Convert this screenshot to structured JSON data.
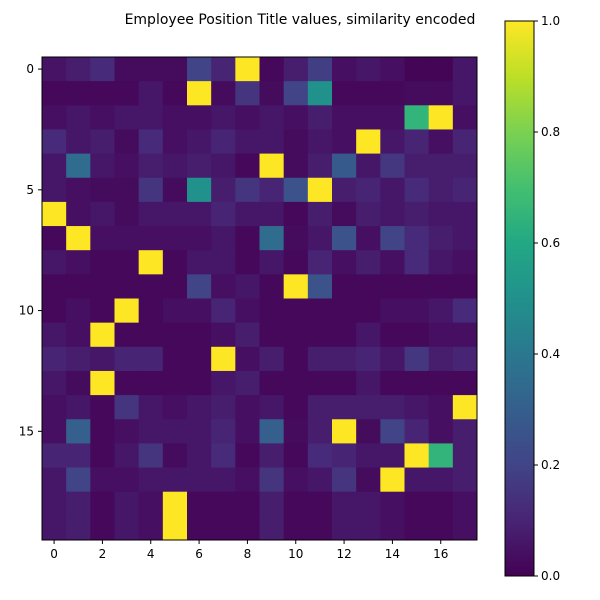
{
  "chart_data": {
    "type": "heatmap",
    "title": "Employee Position Title values, similarity encoded",
    "xlabel": "",
    "ylabel": "",
    "n_rows": 20,
    "n_cols": 18,
    "x_ticks": [
      0,
      2,
      4,
      6,
      8,
      10,
      12,
      14,
      16
    ],
    "y_ticks": [
      0,
      5,
      10,
      15
    ],
    "colorbar": {
      "min": 0.0,
      "max": 1.0,
      "ticks": [
        0.0,
        0.2,
        0.4,
        0.6,
        0.8,
        1.0
      ],
      "tick_labels": [
        "0.0",
        "0.2",
        "0.4",
        "0.6",
        "0.8",
        "1.0"
      ],
      "colormap": "viridis"
    },
    "values": [
      [
        0.05,
        0.08,
        0.12,
        0.03,
        0.03,
        0.03,
        0.2,
        0.1,
        1.0,
        0.02,
        0.08,
        0.18,
        0.04,
        0.06,
        0.04,
        0.01,
        0.01,
        0.06
      ],
      [
        0.02,
        0.02,
        0.02,
        0.02,
        0.06,
        0.02,
        1.0,
        0.03,
        0.15,
        0.03,
        0.2,
        0.5,
        0.02,
        0.02,
        0.02,
        0.03,
        0.03,
        0.06
      ],
      [
        0.04,
        0.06,
        0.04,
        0.06,
        0.06,
        0.04,
        0.04,
        0.06,
        0.04,
        0.06,
        0.04,
        0.08,
        0.04,
        0.04,
        0.04,
        0.65,
        1.0,
        0.04
      ],
      [
        0.12,
        0.06,
        0.08,
        0.03,
        0.12,
        0.04,
        0.06,
        0.1,
        0.06,
        0.06,
        0.03,
        0.06,
        0.04,
        1.0,
        0.06,
        0.1,
        0.04,
        0.1
      ],
      [
        0.06,
        0.35,
        0.06,
        0.04,
        0.08,
        0.06,
        0.08,
        0.06,
        0.02,
        1.0,
        0.03,
        0.08,
        0.28,
        0.06,
        0.16,
        0.08,
        0.08,
        0.08
      ],
      [
        0.06,
        0.04,
        0.03,
        0.03,
        0.15,
        0.03,
        0.5,
        0.08,
        0.15,
        0.1,
        0.25,
        1.0,
        0.08,
        0.1,
        0.06,
        0.12,
        0.08,
        0.1
      ],
      [
        1.0,
        0.04,
        0.06,
        0.03,
        0.06,
        0.06,
        0.06,
        0.1,
        0.06,
        0.06,
        0.02,
        0.08,
        0.03,
        0.08,
        0.06,
        0.08,
        0.06,
        0.06
      ],
      [
        0.02,
        1.0,
        0.04,
        0.04,
        0.04,
        0.04,
        0.04,
        0.06,
        0.02,
        0.35,
        0.03,
        0.06,
        0.25,
        0.04,
        0.2,
        0.12,
        0.08,
        0.06
      ],
      [
        0.06,
        0.04,
        0.02,
        0.02,
        1.0,
        0.02,
        0.06,
        0.06,
        0.02,
        0.06,
        0.02,
        0.1,
        0.04,
        0.08,
        0.04,
        0.12,
        0.06,
        0.04
      ],
      [
        0.02,
        0.02,
        0.02,
        0.02,
        0.02,
        0.02,
        0.2,
        0.04,
        0.06,
        0.02,
        1.0,
        0.25,
        0.02,
        0.02,
        0.02,
        0.02,
        0.02,
        0.02
      ],
      [
        0.02,
        0.04,
        0.02,
        1.0,
        0.02,
        0.04,
        0.04,
        0.1,
        0.04,
        0.02,
        0.02,
        0.02,
        0.02,
        0.02,
        0.04,
        0.04,
        0.06,
        0.12
      ],
      [
        0.06,
        0.04,
        1.0,
        0.02,
        0.02,
        0.02,
        0.02,
        0.04,
        0.08,
        0.02,
        0.02,
        0.02,
        0.02,
        0.06,
        0.02,
        0.02,
        0.04,
        0.04
      ],
      [
        0.1,
        0.08,
        0.06,
        0.1,
        0.1,
        0.02,
        0.02,
        1.0,
        0.04,
        0.08,
        0.02,
        0.08,
        0.08,
        0.1,
        0.06,
        0.16,
        0.08,
        0.1
      ],
      [
        0.06,
        0.03,
        1.0,
        0.02,
        0.02,
        0.02,
        0.02,
        0.06,
        0.08,
        0.02,
        0.02,
        0.02,
        0.02,
        0.06,
        0.02,
        0.02,
        0.02,
        0.02
      ],
      [
        0.04,
        0.06,
        0.02,
        0.15,
        0.06,
        0.04,
        0.06,
        0.08,
        0.04,
        0.06,
        0.02,
        0.08,
        0.08,
        0.08,
        0.08,
        0.06,
        0.04,
        1.0
      ],
      [
        0.04,
        0.3,
        0.02,
        0.04,
        0.06,
        0.06,
        0.06,
        0.1,
        0.04,
        0.3,
        0.03,
        0.08,
        1.0,
        0.03,
        0.2,
        0.1,
        0.04,
        0.08
      ],
      [
        0.1,
        0.1,
        0.02,
        0.06,
        0.15,
        0.03,
        0.06,
        0.12,
        0.02,
        0.08,
        0.02,
        0.12,
        0.1,
        0.06,
        0.06,
        1.0,
        0.65,
        0.08
      ],
      [
        0.06,
        0.2,
        0.04,
        0.04,
        0.06,
        0.06,
        0.06,
        0.06,
        0.04,
        0.15,
        0.04,
        0.06,
        0.15,
        0.03,
        1.0,
        0.06,
        0.06,
        0.08
      ],
      [
        0.06,
        0.08,
        0.02,
        0.06,
        0.04,
        1.0,
        0.02,
        0.02,
        0.02,
        0.08,
        0.02,
        0.02,
        0.06,
        0.06,
        0.04,
        0.02,
        0.02,
        0.04
      ],
      [
        0.06,
        0.08,
        0.02,
        0.06,
        0.04,
        1.0,
        0.02,
        0.02,
        0.02,
        0.08,
        0.02,
        0.02,
        0.06,
        0.06,
        0.04,
        0.02,
        0.02,
        0.04
      ]
    ]
  }
}
